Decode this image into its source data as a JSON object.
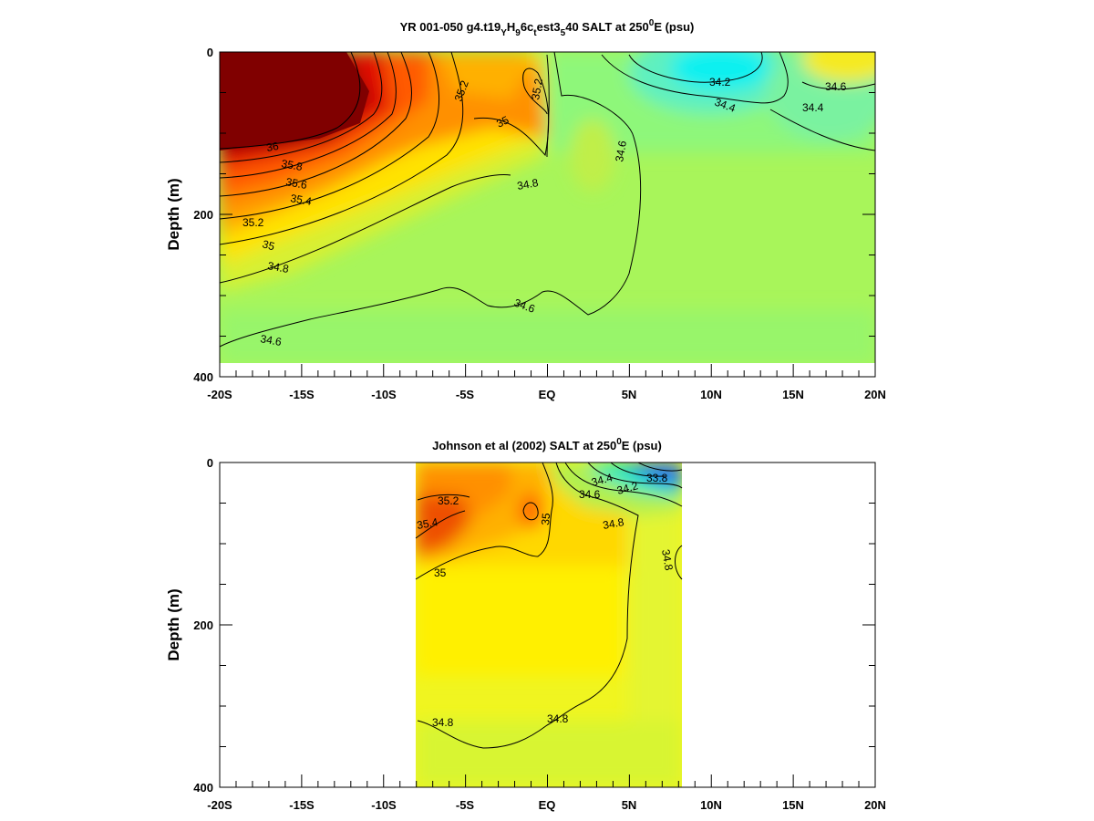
{
  "chart_data": [
    {
      "type": "heatmap",
      "title": {
        "prefix": "YR 001-050 g4.t19",
        "sub1": "Y",
        "mid1": "H",
        "sub2": "9",
        "mid2": "6c",
        "sub3": "t",
        "mid3": "est3",
        "sub4": "5",
        "mid4": "40 SALT at 250",
        "sup": "0",
        "suffix": "E (psu)"
      },
      "ylabel": "Depth (m)",
      "xlim": [
        -20,
        20
      ],
      "ylim": [
        400,
        0
      ],
      "data_extent": {
        "x": [
          -20,
          20
        ],
        "y_max": 385
      },
      "x_tick_labels": [
        "-20S",
        "-15S",
        "-10S",
        "-5S",
        "EQ",
        "5N",
        "10N",
        "15N",
        "20N"
      ],
      "y_tick_labels": [
        "0",
        "200",
        "400"
      ],
      "contour_labels": [
        "35.2",
        "35.2",
        "35",
        "34.6",
        "34.2",
        "34.4",
        "34.4",
        "34.6",
        "34.8",
        "36",
        "35.8",
        "35.6",
        "35.4",
        "35.2",
        "35",
        "34.8",
        "34.6",
        "34.6"
      ]
    },
    {
      "type": "heatmap",
      "title": {
        "prefix": "Johnson et al (2002) SALT at 250",
        "sup": "0",
        "suffix": "E (psu)"
      },
      "ylabel": "Depth (m)",
      "xlim": [
        -20,
        20
      ],
      "ylim": [
        400,
        0
      ],
      "data_extent": {
        "x": [
          -8,
          8
        ]
      },
      "x_tick_labels": [
        "-20S",
        "-15S",
        "-10S",
        "-5S",
        "EQ",
        "5N",
        "10N",
        "15N",
        "20N"
      ],
      "y_tick_labels": [
        "0",
        "200",
        "400"
      ],
      "contour_labels": [
        "35.2",
        "35.4",
        "35",
        "35",
        "34.4",
        "34.6",
        "34.2",
        "33.8",
        "34.8",
        "34.8",
        "34.8",
        "34.8"
      ]
    }
  ]
}
